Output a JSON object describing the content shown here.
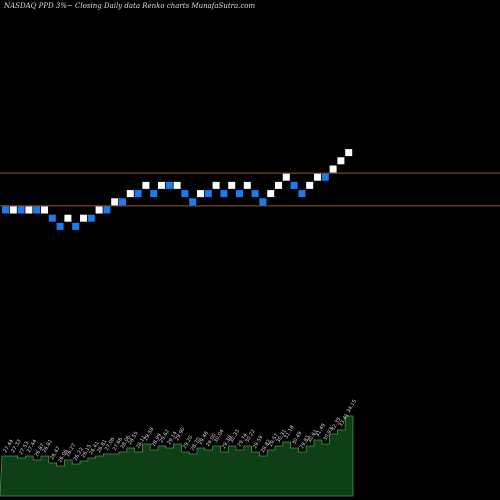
{
  "header": {
    "title": "NASDAQ PPD 3%~ Closing Daily data Renko charts MunafaSutra.com"
  },
  "chart_data": {
    "type": "renko",
    "box_size_label": "3%",
    "colors": {
      "up": "#ffffff",
      "down": "#1a7cf0",
      "hline": "#a0522d",
      "volume": "#0f3f14",
      "volume_edge": "#3a9a48",
      "label": "#dcdcdc"
    },
    "bricks": [
      {
        "dir": "down",
        "level": 0
      },
      {
        "dir": "up",
        "level": 0
      },
      {
        "dir": "down",
        "level": 0
      },
      {
        "dir": "up",
        "level": 0
      },
      {
        "dir": "down",
        "level": 0
      },
      {
        "dir": "up",
        "level": 0
      },
      {
        "dir": "down",
        "level": -1
      },
      {
        "dir": "down",
        "level": -2
      },
      {
        "dir": "up",
        "level": -1
      },
      {
        "dir": "down",
        "level": -2
      },
      {
        "dir": "up",
        "level": -1
      },
      {
        "dir": "down",
        "level": -1
      },
      {
        "dir": "up",
        "level": 0
      },
      {
        "dir": "down",
        "level": 0
      },
      {
        "dir": "up",
        "level": 1
      },
      {
        "dir": "down",
        "level": 1
      },
      {
        "dir": "up",
        "level": 2
      },
      {
        "dir": "down",
        "level": 2
      },
      {
        "dir": "up",
        "level": 3
      },
      {
        "dir": "down",
        "level": 2
      },
      {
        "dir": "up",
        "level": 3
      },
      {
        "dir": "down",
        "level": 3
      },
      {
        "dir": "up",
        "level": 3
      },
      {
        "dir": "down",
        "level": 2
      },
      {
        "dir": "down",
        "level": 1
      },
      {
        "dir": "up",
        "level": 2
      },
      {
        "dir": "down",
        "level": 2
      },
      {
        "dir": "up",
        "level": 3
      },
      {
        "dir": "down",
        "level": 2
      },
      {
        "dir": "up",
        "level": 3
      },
      {
        "dir": "down",
        "level": 2
      },
      {
        "dir": "up",
        "level": 3
      },
      {
        "dir": "down",
        "level": 2
      },
      {
        "dir": "down",
        "level": 1
      },
      {
        "dir": "up",
        "level": 2
      },
      {
        "dir": "up",
        "level": 3
      },
      {
        "dir": "up",
        "level": 4
      },
      {
        "dir": "down",
        "level": 3
      },
      {
        "dir": "down",
        "level": 2
      },
      {
        "dir": "up",
        "level": 3
      },
      {
        "dir": "up",
        "level": 4
      },
      {
        "dir": "down",
        "level": 4
      },
      {
        "dir": "up",
        "level": 5
      },
      {
        "dir": "up",
        "level": 6
      },
      {
        "dir": "up",
        "level": 7
      }
    ],
    "h_lines": [
      4.5,
      0.5
    ],
    "volume": [
      40,
      40,
      38,
      40,
      36,
      40,
      33,
      30,
      36,
      32,
      35,
      38,
      40,
      42,
      42,
      44,
      48,
      44,
      52,
      46,
      50,
      48,
      52,
      44,
      42,
      48,
      46,
      50,
      44,
      50,
      46,
      50,
      44,
      40,
      46,
      50,
      54,
      48,
      44,
      50,
      56,
      52,
      62,
      66,
      80
    ],
    "price_labels": [
      "27.44",
      "27.33",
      "27.53",
      "27.44",
      "26.87",
      "26.81",
      "26.47",
      "26.06",
      "26.27",
      "26.22",
      "26.15",
      "26.41",
      "26.81",
      "27.06",
      "27.66",
      "28.06",
      "28.55",
      "28.11",
      "29.58",
      "28.99",
      "29.62",
      "29.14",
      "29.90",
      "29.20",
      "28.70",
      "29.48",
      "29.00",
      "30.04",
      "29.38",
      "30.33",
      "29.74",
      "30.22",
      "29.59",
      "28.82",
      "29.57",
      "30.31",
      "31.18",
      "30.49",
      "29.83",
      "30.61",
      "31.49",
      "30.93",
      "32.35",
      "33.41",
      "34.15"
    ]
  }
}
